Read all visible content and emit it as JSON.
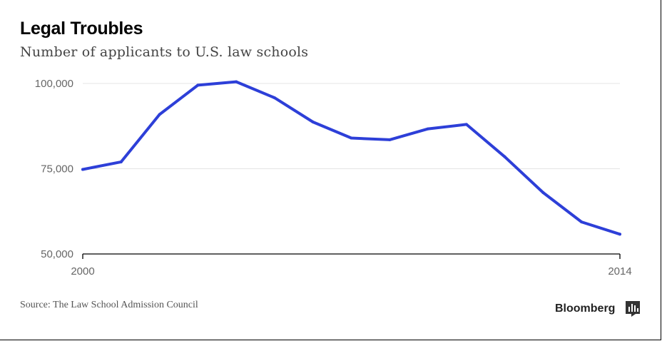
{
  "header": {
    "title": "Legal Troubles",
    "subtitle": "Number of applicants to U.S. law schools"
  },
  "footer": {
    "source": "Source: The Law School Admission Council",
    "brand": "Bloomberg",
    "brand_icon": "bloomberg-chart-icon"
  },
  "chart_data": {
    "type": "line",
    "title": "Legal Troubles",
    "subtitle": "Number of applicants to U.S. law schools",
    "xlabel": "",
    "ylabel": "",
    "x": [
      2000,
      2001,
      2002,
      2003,
      2004,
      2005,
      2006,
      2007,
      2008,
      2009,
      2010,
      2011,
      2012,
      2013,
      2014
    ],
    "series": [
      {
        "values": [
          74800,
          77000,
          90900,
          99500,
          100500,
          95800,
          88700,
          84000,
          83500,
          86700,
          88000,
          78500,
          68000,
          59400,
          55800
        ],
        "color": "#2d3fd8"
      }
    ],
    "xlim": [
      2000,
      2014
    ],
    "ylim": [
      50000,
      100000
    ],
    "xticks": [
      "2000",
      "2014"
    ],
    "yticks": [
      "100,000",
      "75,000",
      "50,000"
    ],
    "grid": "horizontal",
    "legend": "none"
  }
}
